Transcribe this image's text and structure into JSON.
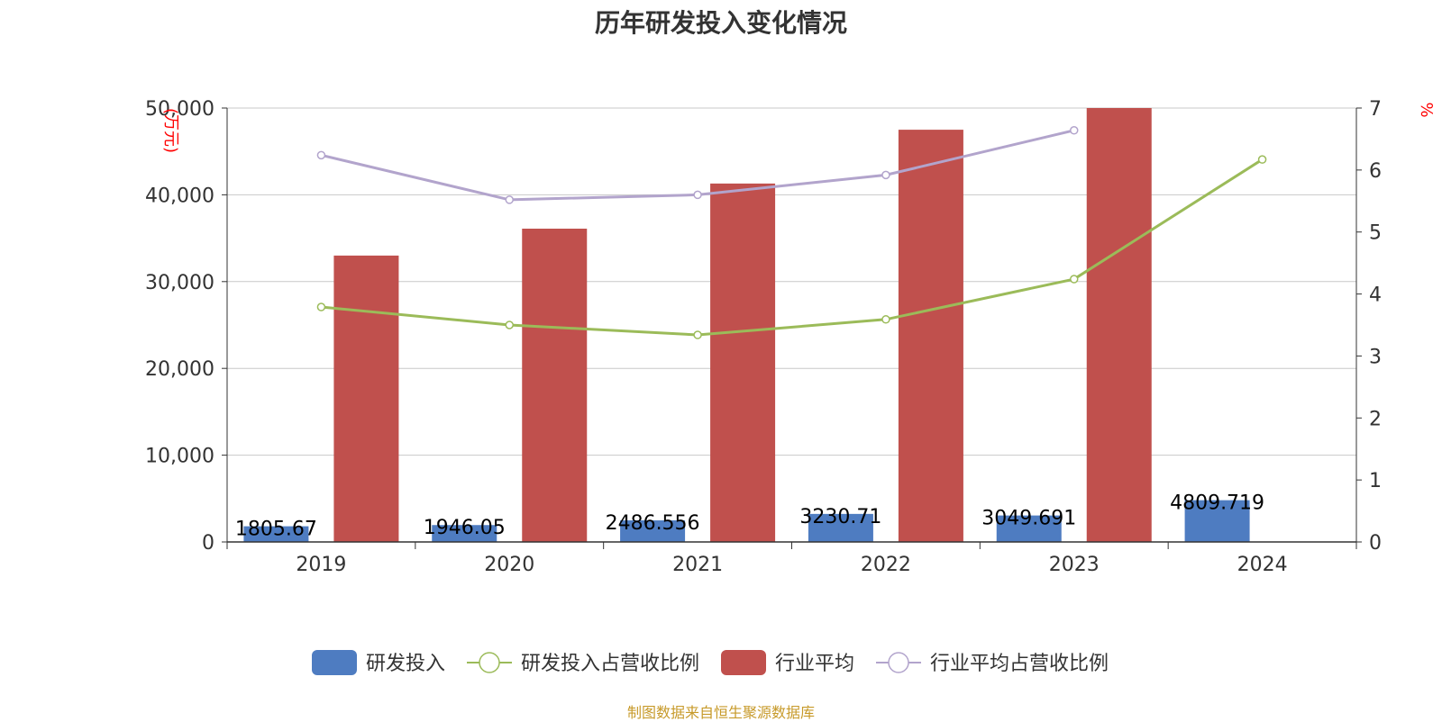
{
  "colors": {
    "rd_investment": "#4e7cc1",
    "rd_ratio": "#9bbb59",
    "industry_avg": "#c0504d",
    "industry_ratio": "#b2a4cc",
    "axis_unit": "#ff0000",
    "source": "#c79a2a",
    "text": "#333333",
    "grid": "#c8c8c8"
  },
  "source_text": "制图数据来自恒生聚源数据库",
  "chart_data": {
    "type": "bar",
    "title": "历年研发投入变化情况",
    "categories": [
      "2019",
      "2020",
      "2021",
      "2022",
      "2023",
      "2024"
    ],
    "y_left": {
      "unit": "(万元)",
      "ylim": [
        0,
        50000
      ],
      "ticks": [
        0,
        10000,
        20000,
        30000,
        40000,
        50000
      ],
      "tick_labels": [
        "0",
        "10,000",
        "20,000",
        "30,000",
        "40,000",
        "50,000"
      ]
    },
    "y_right": {
      "unit": "%",
      "ylim": [
        0,
        7
      ],
      "ticks": [
        0,
        1,
        2,
        3,
        4,
        5,
        6,
        7
      ],
      "tick_labels": [
        "0",
        "1",
        "2",
        "3",
        "4",
        "5",
        "6",
        "7"
      ]
    },
    "grid": true,
    "legend_position": "bottom-center",
    "series": [
      {
        "name": "研发投入",
        "kind": "bar",
        "axis": "left",
        "color_key": "rd_investment",
        "values": [
          1805.67,
          1946.05,
          2486.556,
          3230.71,
          3049.691,
          4809.719
        ],
        "labels": [
          "1805.67",
          "1946.05",
          "2486.556",
          "3230.71",
          "3049.691",
          "4809.719"
        ]
      },
      {
        "name": "研发投入占营收比例",
        "kind": "line",
        "axis": "right",
        "color_key": "rd_ratio",
        "values": [
          3.79,
          3.5,
          3.34,
          3.59,
          4.24,
          6.17
        ]
      },
      {
        "name": "行业平均",
        "kind": "bar",
        "axis": "left",
        "color_key": "industry_avg",
        "values": [
          33000,
          36100,
          41300,
          47500,
          50000,
          null
        ]
      },
      {
        "name": "行业平均占营收比例",
        "kind": "line",
        "axis": "right",
        "color_key": "industry_ratio",
        "values": [
          6.24,
          5.52,
          5.6,
          5.92,
          6.64,
          null
        ]
      }
    ]
  }
}
